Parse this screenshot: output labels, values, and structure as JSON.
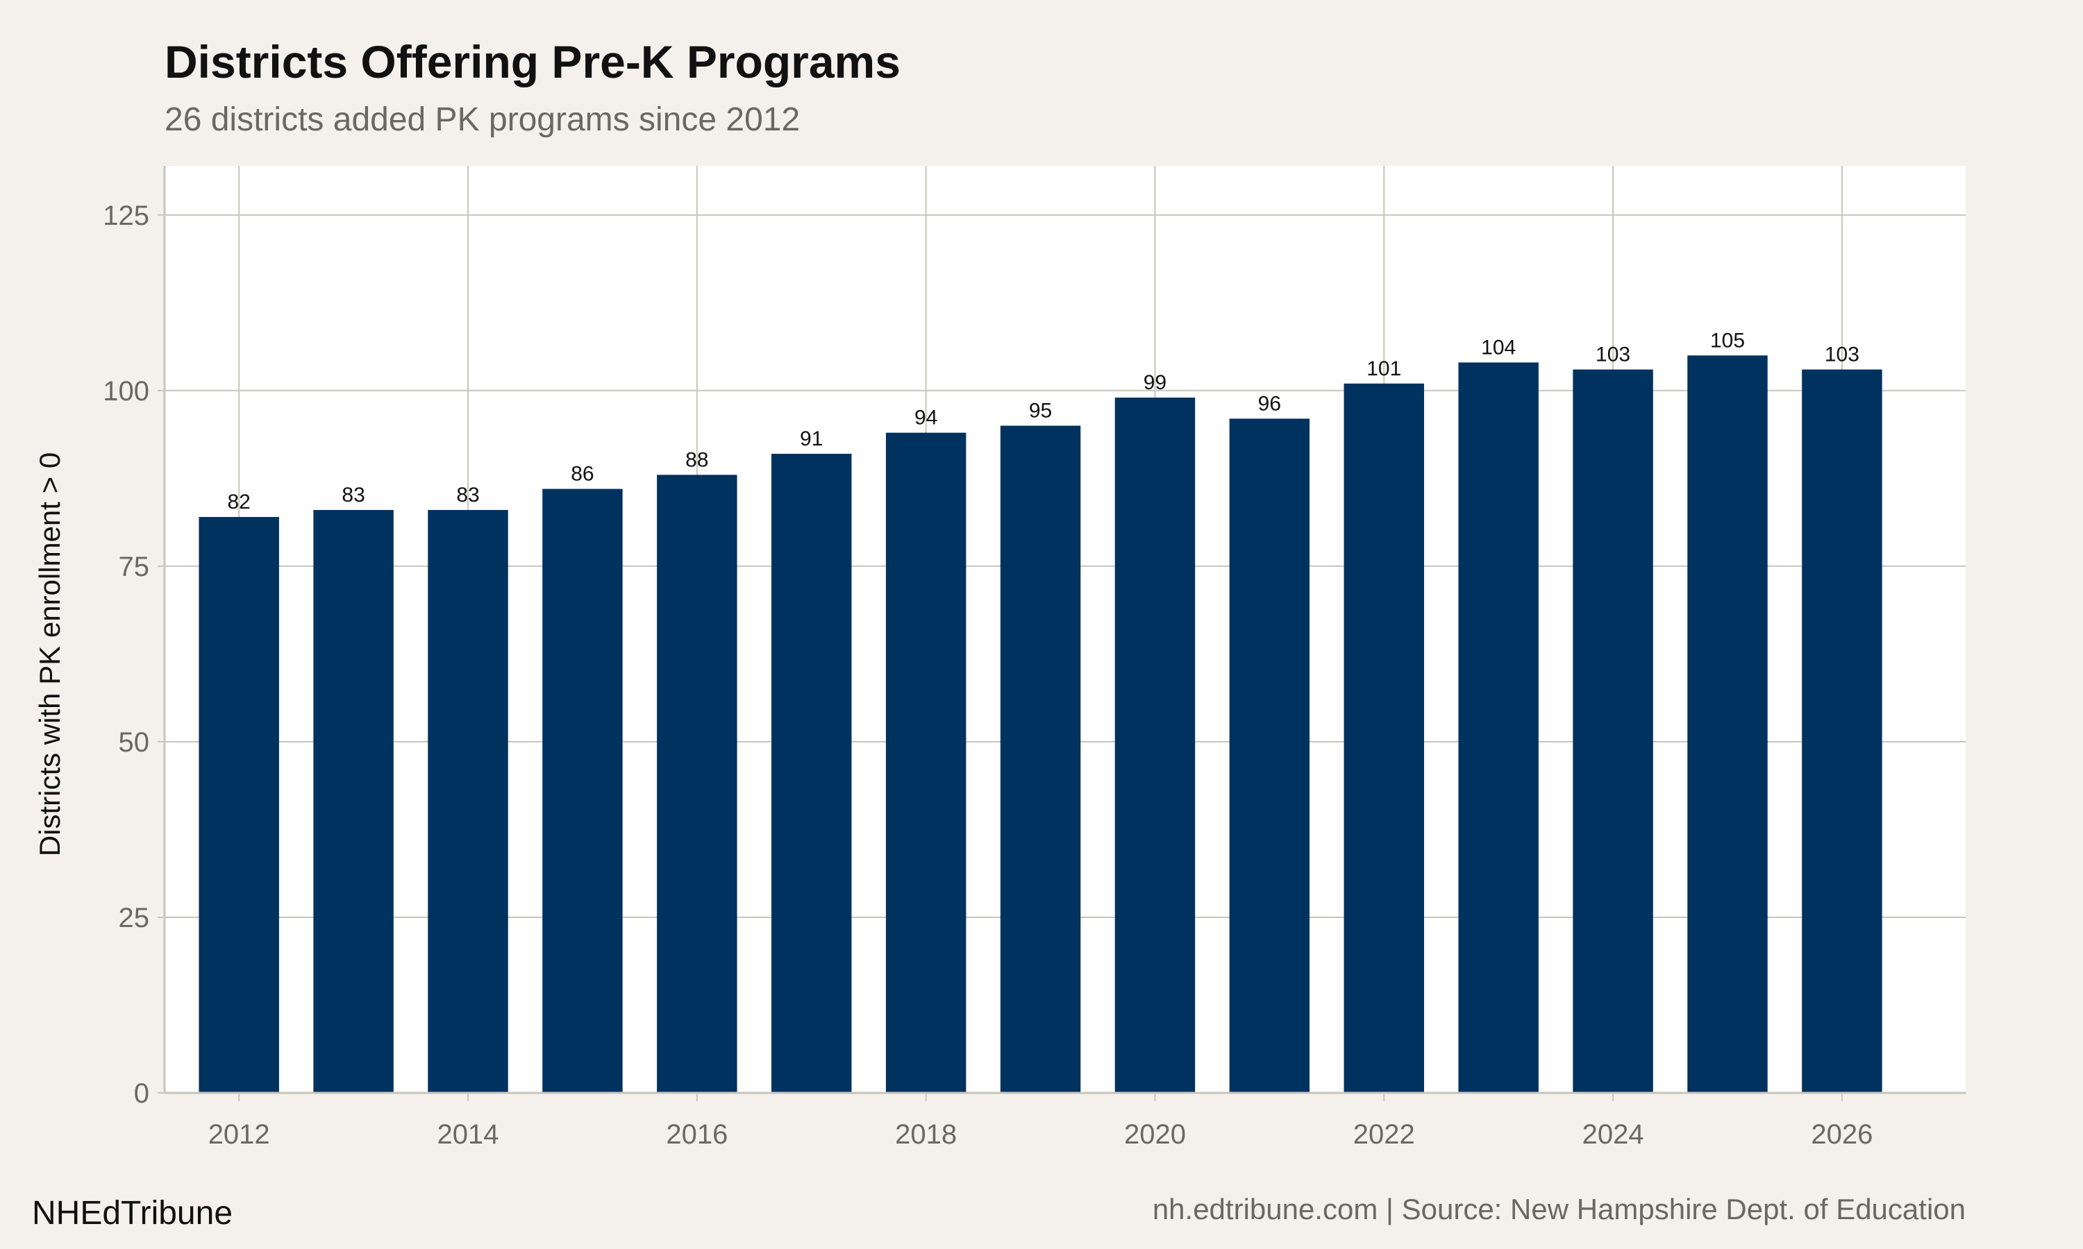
{
  "chart_data": {
    "type": "bar",
    "title": "Districts Offering Pre-K Programs",
    "subtitle": "26 districts added PK programs since 2012",
    "xlabel": "",
    "ylabel": "Districts with PK enrollment > 0",
    "x": [
      2012,
      2013,
      2014,
      2015,
      2016,
      2017,
      2018,
      2019,
      2020,
      2021,
      2022,
      2023,
      2024,
      2025,
      2026
    ],
    "values": [
      82,
      83,
      83,
      86,
      88,
      91,
      94,
      95,
      99,
      96,
      101,
      104,
      103,
      105,
      103
    ],
    "data_labels": [
      "82",
      "83",
      "83",
      "86",
      "88",
      "91",
      "94",
      "95",
      "99",
      "96",
      "101",
      "104",
      "103",
      "105",
      "103"
    ],
    "x_ticks": [
      "2012",
      "2014",
      "2016",
      "2018",
      "2020",
      "2022",
      "2024",
      "2026"
    ],
    "y_ticks": [
      "0",
      "25",
      "50",
      "75",
      "100",
      "125"
    ],
    "ylim": [
      0,
      132
    ],
    "xlim": [
      2011.35,
      2027.08
    ],
    "grid": true,
    "bar_color": "#00325f",
    "grid_color": "#c9c4bc",
    "background_color": "#f4f1ec",
    "panel_color": "#ffffff"
  },
  "footer": {
    "brand": "NHEdTribune",
    "caption": "nh.edtribune.com | Source: New Hampshire Dept. of Education"
  }
}
